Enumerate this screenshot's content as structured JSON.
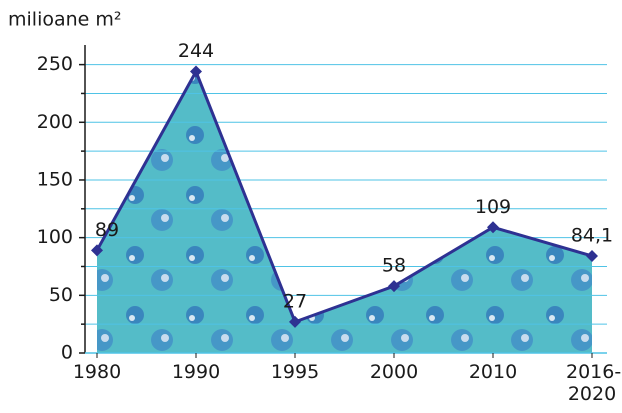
{
  "chart_data": {
    "type": "area",
    "y_axis_label": "milioane m²",
    "categories": [
      "1980",
      "1990",
      "1995",
      "2000",
      "2010",
      "2016-2020"
    ],
    "series": [
      {
        "color": "#2e3192",
        "fill": "#54bcc8",
        "values": [
          89,
          244,
          27,
          58,
          109,
          84.1
        ],
        "value_labels": [
          "89",
          "244",
          "27",
          "58",
          "109",
          "84,1"
        ]
      }
    ],
    "ylim": [
      0,
      267
    ],
    "yticks": [
      0,
      50,
      100,
      150,
      200,
      250
    ],
    "minor_yticks": [
      25,
      75,
      125,
      175,
      225
    ],
    "grid": true,
    "grid_color": "#4fc3e6"
  }
}
